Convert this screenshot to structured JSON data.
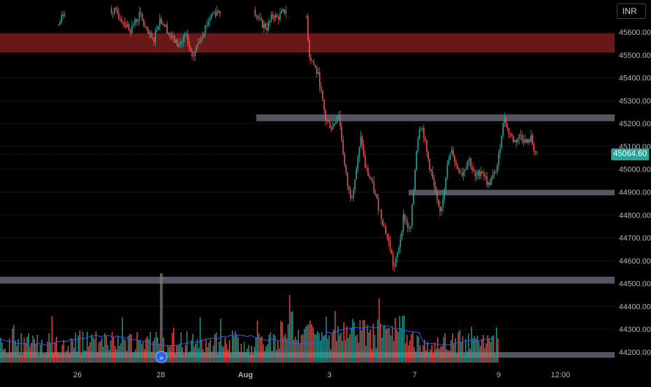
{
  "currency": "INR",
  "last_price": "45064.60",
  "price_axis": {
    "ticks": [
      45600,
      45500,
      45400,
      45300,
      45200,
      45100,
      45000,
      44900,
      44800,
      44700,
      44600,
      44500,
      44400,
      44300,
      44200
    ],
    "tick_labels": [
      "45600.00",
      "45500.00",
      "45400.00",
      "45300.00",
      "45200.00",
      "45100.00",
      "45000.00",
      "44900.00",
      "44800.00",
      "44700.00",
      "44600.00",
      "44500.00",
      "44400.00",
      "44300.00",
      "44200.00"
    ]
  },
  "time_axis": {
    "labels": [
      "26",
      "28",
      "Aug",
      "3",
      "7",
      "9",
      "12:00"
    ],
    "positions": [
      0.119,
      0.247,
      0.377,
      0.506,
      0.637,
      0.766,
      0.861
    ]
  },
  "chart_data": {
    "type": "candlestick",
    "ylim": [
      44170,
      45650
    ],
    "zones": [
      {
        "name": "resistance",
        "from": 45510,
        "to": 45595,
        "color": "#7a1c1c"
      },
      {
        "name": "resistance",
        "from": 45210,
        "to": 45240,
        "color": "#5d606b"
      },
      {
        "name": "support",
        "from": 44890,
        "to": 44910,
        "color": "#5d606b"
      },
      {
        "name": "support",
        "from": 44500,
        "to": 44530,
        "color": "#5d606b"
      },
      {
        "name": "support",
        "from": 44180,
        "to": 44200,
        "color": "#5d606b"
      }
    ],
    "price_path": [
      [
        0.09,
        45630
      ],
      [
        0.1,
        45700
      ],
      [
        0.17,
        45700
      ],
      [
        0.18,
        45680
      ],
      [
        0.2,
        45610
      ],
      [
        0.215,
        45680
      ],
      [
        0.225,
        45600
      ],
      [
        0.235,
        45560
      ],
      [
        0.245,
        45660
      ],
      [
        0.255,
        45620
      ],
      [
        0.265,
        45570
      ],
      [
        0.275,
        45540
      ],
      [
        0.285,
        45590
      ],
      [
        0.295,
        45480
      ],
      [
        0.305,
        45560
      ],
      [
        0.315,
        45620
      ],
      [
        0.325,
        45680
      ],
      [
        0.34,
        45700
      ],
      [
        0.39,
        45700
      ],
      [
        0.4,
        45640
      ],
      [
        0.41,
        45620
      ],
      [
        0.42,
        45680
      ],
      [
        0.425,
        45660
      ],
      [
        0.44,
        45700
      ],
      [
        0.47,
        45700
      ],
      [
        0.475,
        45500
      ],
      [
        0.48,
        45470
      ],
      [
        0.49,
        45400
      ],
      [
        0.495,
        45300
      ],
      [
        0.5,
        45220
      ],
      [
        0.51,
        45180
      ],
      [
        0.52,
        45250
      ],
      [
        0.525,
        45130
      ],
      [
        0.53,
        45000
      ],
      [
        0.535,
        44910
      ],
      [
        0.54,
        44880
      ],
      [
        0.545,
        44960
      ],
      [
        0.55,
        45050
      ],
      [
        0.555,
        45150
      ],
      [
        0.56,
        45020
      ],
      [
        0.565,
        44980
      ],
      [
        0.57,
        44950
      ],
      [
        0.58,
        44850
      ],
      [
        0.59,
        44750
      ],
      [
        0.6,
        44650
      ],
      [
        0.605,
        44560
      ],
      [
        0.61,
        44620
      ],
      [
        0.615,
        44700
      ],
      [
        0.62,
        44800
      ],
      [
        0.63,
        44720
      ],
      [
        0.635,
        44900
      ],
      [
        0.64,
        45100
      ],
      [
        0.645,
        45200
      ],
      [
        0.65,
        45170
      ],
      [
        0.655,
        45080
      ],
      [
        0.665,
        44950
      ],
      [
        0.675,
        44800
      ],
      [
        0.68,
        44870
      ],
      [
        0.685,
        44980
      ],
      [
        0.69,
        45050
      ],
      [
        0.695,
        45080
      ],
      [
        0.7,
        45020
      ],
      [
        0.71,
        44980
      ],
      [
        0.72,
        45050
      ],
      [
        0.73,
        44960
      ],
      [
        0.74,
        45000
      ],
      [
        0.75,
        44930
      ],
      [
        0.76,
        44980
      ],
      [
        0.765,
        45030
      ],
      [
        0.77,
        45150
      ],
      [
        0.775,
        45230
      ],
      [
        0.78,
        45170
      ],
      [
        0.79,
        45120
      ],
      [
        0.8,
        45150
      ],
      [
        0.81,
        45110
      ],
      [
        0.815,
        45140
      ],
      [
        0.82,
        45090
      ],
      [
        0.825,
        45060
      ]
    ],
    "volume_scale": [
      0,
      1
    ]
  }
}
